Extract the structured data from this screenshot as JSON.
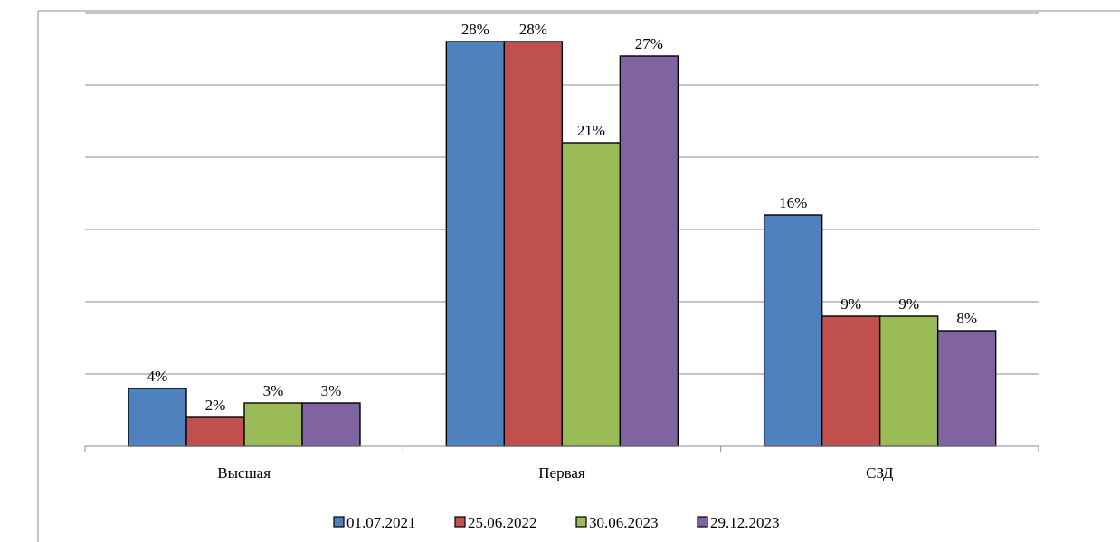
{
  "chart_data": {
    "type": "bar",
    "categories": [
      "Высшая",
      "Первая",
      "СЗД"
    ],
    "series": [
      {
        "name": "01.07.2021",
        "values": [
          4,
          28,
          16
        ],
        "labels": [
          "4%",
          "28%",
          "16%"
        ],
        "color": "#4f81bd"
      },
      {
        "name": "25.06.2022",
        "values": [
          2,
          28,
          9
        ],
        "labels": [
          "2%",
          "28%",
          "9%"
        ],
        "color": "#c0504d"
      },
      {
        "name": "30.06.2023",
        "values": [
          3,
          21,
          9
        ],
        "labels": [
          "3%",
          "21%",
          "9%"
        ],
        "color": "#9bbb59"
      },
      {
        "name": "29.12.2023",
        "values": [
          3,
          27,
          8
        ],
        "labels": [
          "3%",
          "27%",
          "8%"
        ],
        "color": "#8064a2"
      }
    ],
    "ylim": [
      0,
      30
    ],
    "grid": true,
    "legend": "bottom",
    "title": "",
    "xlabel": "",
    "ylabel": ""
  }
}
